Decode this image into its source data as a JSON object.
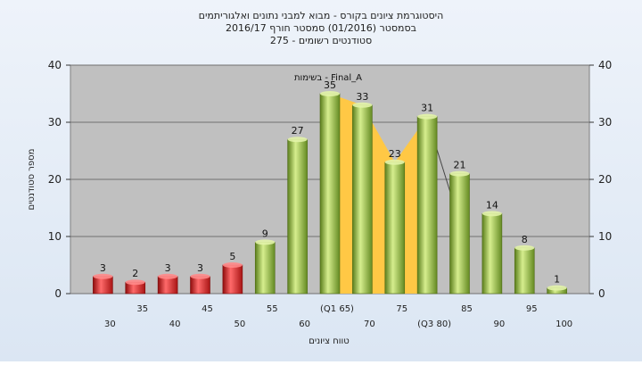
{
  "chart_data": {
    "type": "bar",
    "title_lines": [
      "היסטוגרמת ציונים בקורס - מבוא למבני נתונים ואלגוריתמים",
      "בסמסטר  (01/2016)  סמסטר חורף 2016/17",
      "סטודנטים רשומים - 275"
    ],
    "ylabel": "מספר סטודנטים",
    "xlabel": "טווח ציונים",
    "ylim": [
      0,
      40
    ],
    "y_ticks": [
      "0",
      "10",
      "20",
      "30",
      "40"
    ],
    "annotation": "בשימות - Final_A",
    "categories": [
      "30",
      "35",
      "40",
      "45",
      "50",
      "55",
      "60",
      "(Q1 65)",
      "70",
      "75",
      "(Q3 80)",
      "85",
      "90",
      "95",
      "100"
    ],
    "values": [
      3,
      2,
      3,
      3,
      5,
      9,
      27,
      35,
      33,
      23,
      31,
      21,
      14,
      8,
      1
    ],
    "value_labels": [
      "3",
      "2",
      "3",
      "3",
      "5",
      "9",
      "27",
      "35",
      "33",
      "23",
      "31",
      "21",
      "14",
      "8",
      "1"
    ],
    "bar_colors": [
      "red",
      "red",
      "red",
      "red",
      "red",
      "green",
      "green",
      "green",
      "green",
      "green",
      "green",
      "green",
      "green",
      "green",
      "green"
    ],
    "iqr_band": {
      "from_index": 7,
      "to_index": 10
    },
    "grid": true,
    "legend": "none"
  },
  "colors": {
    "plot_bg": "#c0c0c0",
    "red_bar": "#e23434",
    "green_bar": "#9bc24a",
    "band": "#ffc845"
  }
}
